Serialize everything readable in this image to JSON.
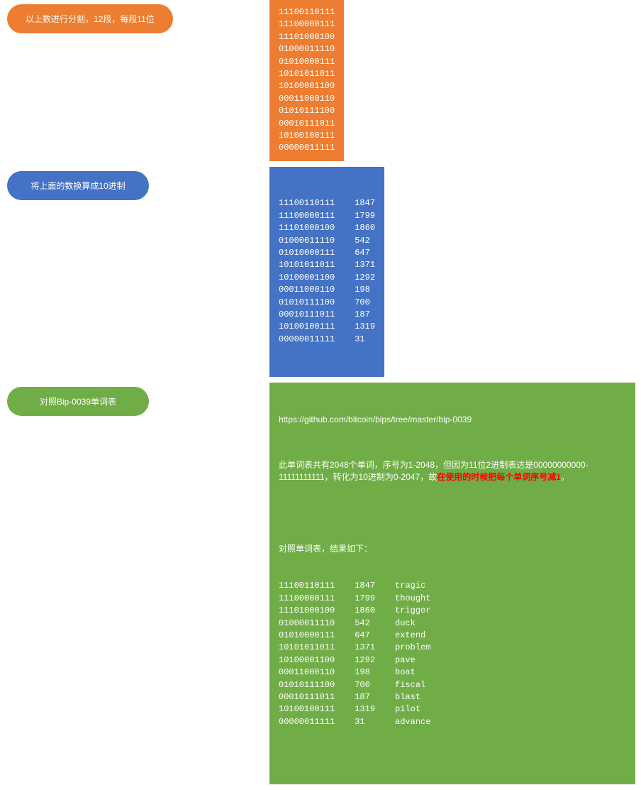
{
  "colors": {
    "orange": "#ed7d31",
    "blue": "#4472c4",
    "green": "#70ad47",
    "red": "#ff0000",
    "white": "#ffffff",
    "background": "#ffffff"
  },
  "step1": {
    "label": "以上数进行分割，12段，每段11位",
    "lines": [
      "11100110111",
      "11100000111",
      "11101000100",
      "01000011110",
      "01010000111",
      "10101011011",
      "10100001100",
      "00011000110",
      "01010111100",
      "00010111011",
      "10100100111",
      "00000011111"
    ]
  },
  "step2": {
    "label": "将上面的数换算成10进制",
    "rows": [
      {
        "bin": "11100110111",
        "dec": "1847"
      },
      {
        "bin": "11100000111",
        "dec": "1799"
      },
      {
        "bin": "11101000100",
        "dec": "1860"
      },
      {
        "bin": "01000011110",
        "dec": "542"
      },
      {
        "bin": "01010000111",
        "dec": "647"
      },
      {
        "bin": "10101011011",
        "dec": "1371"
      },
      {
        "bin": "10100001100",
        "dec": "1292"
      },
      {
        "bin": "00011000110",
        "dec": "198"
      },
      {
        "bin": "01010111100",
        "dec": "700"
      },
      {
        "bin": "00010111011",
        "dec": "187"
      },
      {
        "bin": "10100100111",
        "dec": "1319"
      },
      {
        "bin": "00000011111",
        "dec": "31"
      }
    ]
  },
  "step3": {
    "label": "对照Bip-0039单词表",
    "url": "https://github.com/bitcoin/bips/tree/master/bip-0039",
    "desc_prefix": "此单词表共有2048个单词，序号为1-2048，但因为11位2进制表达是00000000000-11111111111，转化为10进制为0-2047，故",
    "desc_emph": "在使用的时候把每个单词序号减1",
    "desc_suffix": "。",
    "result_title": "对照单词表，结果如下：",
    "rows": [
      {
        "bin": "11100110111",
        "dec": "1847",
        "word": "tragic"
      },
      {
        "bin": "11100000111",
        "dec": "1799",
        "word": "thought"
      },
      {
        "bin": "11101000100",
        "dec": "1860",
        "word": "trigger"
      },
      {
        "bin": "01000011110",
        "dec": "542",
        "word": "duck"
      },
      {
        "bin": "01010000111",
        "dec": "647",
        "word": "extend"
      },
      {
        "bin": "10101011011",
        "dec": "1371",
        "word": "problem"
      },
      {
        "bin": "10100001100",
        "dec": "1292",
        "word": "pave"
      },
      {
        "bin": "00011000110",
        "dec": "198",
        "word": "boat"
      },
      {
        "bin": "01010111100",
        "dec": "700",
        "word": "fiscal"
      },
      {
        "bin": "00010111011",
        "dec": "187",
        "word": "blast"
      },
      {
        "bin": "10100100111",
        "dec": "1319",
        "word": "pilot"
      },
      {
        "bin": "00000011111",
        "dec": "31",
        "word": "advance"
      }
    ]
  }
}
